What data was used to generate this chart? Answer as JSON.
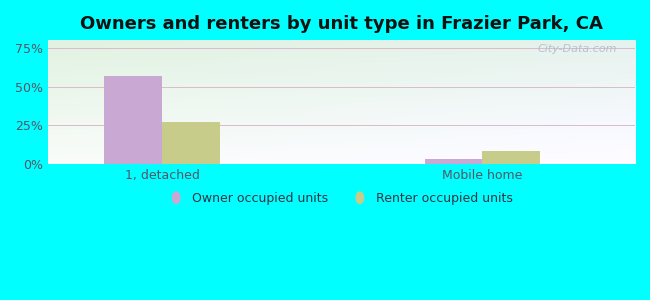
{
  "title": "Owners and renters by unit type in Frazier Park, CA",
  "categories": [
    "1, detached",
    "Mobile home"
  ],
  "owner_values": [
    57,
    3.5
  ],
  "renter_values": [
    27,
    8.5
  ],
  "owner_color": "#c9a8d4",
  "renter_color": "#c8cc8a",
  "yticks": [
    0,
    25,
    50,
    75
  ],
  "ylim": [
    0,
    80
  ],
  "bar_width": 0.38,
  "legend_labels": [
    "Owner occupied units",
    "Renter occupied units"
  ],
  "watermark": "City-Data.com",
  "title_fontsize": 13,
  "outer_bg": "#00ffff",
  "group_positions": [
    1.1,
    3.2
  ],
  "xlim": [
    0.35,
    4.2
  ]
}
